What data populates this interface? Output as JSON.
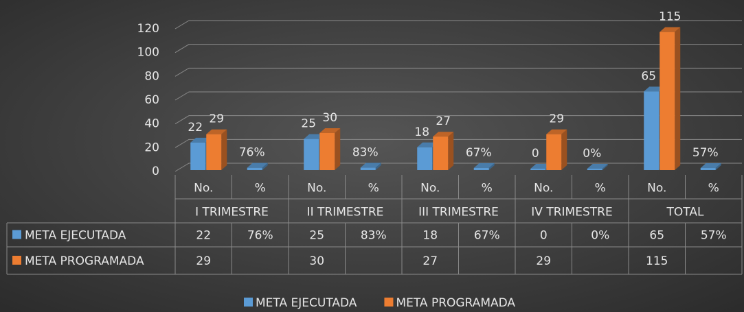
{
  "chart_data": {
    "type": "bar3d",
    "categories": [
      "No.",
      "%",
      "No.",
      "%",
      "No.",
      "%",
      "No.",
      "%",
      "No.",
      "%"
    ],
    "groups": [
      "I TRIMESTRE",
      "II TRIMESTRE",
      "III TRIMESTRE",
      "IV TRIMESTRE",
      "TOTAL"
    ],
    "series": [
      {
        "name": "META EJECUTADA",
        "color": "#5b9bd5",
        "values": [
          22,
          0.76,
          25,
          0.83,
          18,
          0.67,
          0,
          0,
          65,
          0.57
        ],
        "value_labels": [
          "22",
          "76%",
          "25",
          "83%",
          "18",
          "67%",
          "0",
          "0%",
          "65",
          "57%"
        ]
      },
      {
        "name": "META PROGRAMADA",
        "color": "#ed7d31",
        "values": [
          29,
          null,
          30,
          null,
          27,
          null,
          29,
          null,
          115,
          null
        ]
      }
    ],
    "ylim": [
      0,
      120
    ],
    "yticks": [
      0,
      20,
      40,
      60,
      80,
      100,
      120
    ],
    "grid": true,
    "data_table": true,
    "legend": "bottom"
  }
}
